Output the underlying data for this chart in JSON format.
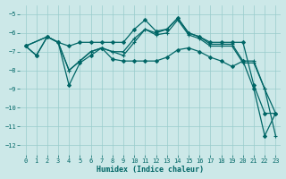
{
  "xlabel": "Humidex (Indice chaleur)",
  "bg_color": "#cce8e8",
  "grid_color": "#99cccc",
  "line_color": "#006666",
  "xlim": [
    -0.5,
    23.5
  ],
  "ylim": [
    -12.5,
    -4.5
  ],
  "yticks": [
    -12,
    -11,
    -10,
    -9,
    -8,
    -7,
    -6,
    -5
  ],
  "xticks": [
    0,
    1,
    2,
    3,
    4,
    5,
    6,
    7,
    8,
    9,
    10,
    11,
    12,
    13,
    14,
    15,
    16,
    17,
    18,
    19,
    20,
    21,
    22,
    23
  ],
  "series": [
    {
      "x": [
        0,
        1,
        2,
        3,
        4,
        5,
        6,
        7,
        8,
        9,
        10,
        11,
        12,
        13,
        14,
        15,
        16,
        17,
        18,
        19,
        20,
        21,
        22,
        23
      ],
      "y": [
        -6.7,
        -7.2,
        -6.2,
        -6.5,
        -6.7,
        -6.5,
        -6.5,
        -6.5,
        -6.5,
        -6.5,
        -5.8,
        -5.3,
        -5.9,
        -5.8,
        -5.2,
        -6.0,
        -6.2,
        -6.5,
        -6.5,
        -6.5,
        -6.5,
        -8.8,
        -10.3,
        -10.3
      ],
      "marker": "D",
      "ms": 2.0,
      "lw": 0.9
    },
    {
      "x": [
        0,
        2,
        3,
        4,
        5,
        6,
        7,
        8,
        9,
        10,
        11,
        12,
        13,
        14,
        15,
        16,
        17,
        18,
        19,
        20,
        21,
        22,
        23
      ],
      "y": [
        -6.7,
        -6.2,
        -6.5,
        -8.0,
        -7.5,
        -7.0,
        -6.8,
        -7.0,
        -7.0,
        -6.3,
        -5.8,
        -6.0,
        -5.8,
        -5.2,
        -6.0,
        -6.2,
        -6.6,
        -6.6,
        -6.6,
        -7.5,
        -7.5,
        -9.0,
        -11.5
      ],
      "marker": "+",
      "ms": 3.5,
      "lw": 0.9
    },
    {
      "x": [
        0,
        2,
        3,
        4,
        5,
        6,
        7,
        8,
        9,
        10,
        11,
        12,
        13,
        14,
        15,
        16,
        17,
        18,
        19,
        20,
        21,
        22,
        23
      ],
      "y": [
        -6.7,
        -6.2,
        -6.5,
        -8.0,
        -7.5,
        -7.0,
        -6.8,
        -7.0,
        -7.2,
        -6.5,
        -5.8,
        -6.1,
        -6.0,
        -5.3,
        -6.1,
        -6.3,
        -6.7,
        -6.7,
        -6.7,
        -7.6,
        -7.6,
        -9.0,
        -10.3
      ],
      "marker": "+",
      "ms": 3.5,
      "lw": 0.9
    },
    {
      "x": [
        0,
        1,
        2,
        3,
        4,
        5,
        6,
        7,
        8,
        9,
        10,
        11,
        12,
        13,
        14,
        15,
        16,
        17,
        18,
        19,
        20,
        21,
        22,
        23
      ],
      "y": [
        -6.7,
        -7.2,
        -6.2,
        -6.5,
        -8.8,
        -7.6,
        -7.2,
        -6.8,
        -7.4,
        -7.5,
        -7.5,
        -7.5,
        -7.5,
        -7.3,
        -6.9,
        -6.8,
        -7.0,
        -7.3,
        -7.5,
        -7.8,
        -7.5,
        -9.0,
        -11.5,
        -10.3
      ],
      "marker": "D",
      "ms": 2.0,
      "lw": 0.9
    }
  ]
}
